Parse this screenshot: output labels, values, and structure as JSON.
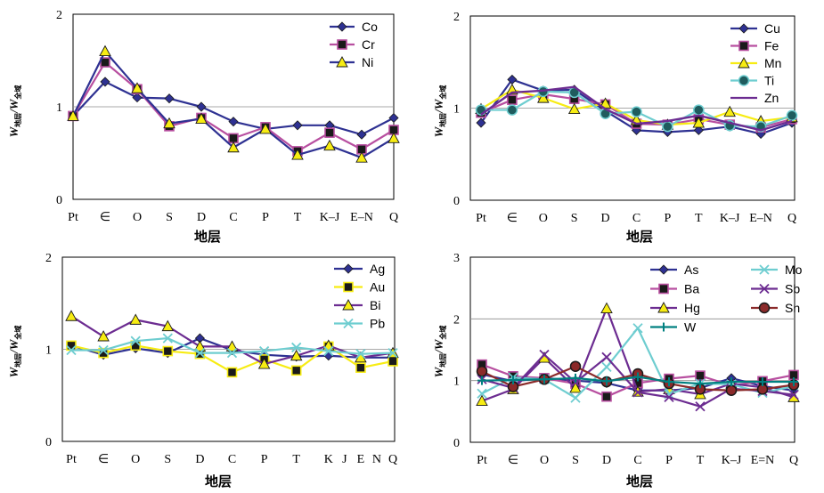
{
  "colors": {
    "navy": "#2e3192",
    "magenta": "#b84fa0",
    "yellow": "#f7ec13",
    "cyan": "#6ecdd0",
    "purple": "#6c2c91",
    "darkred": "#8b2a2a",
    "teal": "#008080",
    "markerDark": "#1a1a1a"
  },
  "chart_data": [
    {
      "type": "line",
      "ylabel": "W地层/W全域",
      "xlabel": "地层",
      "categories": [
        "Pt",
        "∈",
        "O",
        "S",
        "D",
        "C",
        "P",
        "T",
        "K–J",
        "E–N",
        "Q"
      ],
      "ylim": [
        0,
        2
      ],
      "yticks": [
        "0",
        "1",
        "2"
      ],
      "grid_y": [
        1
      ],
      "series": [
        {
          "name": "Co",
          "color": "navy",
          "marker": "diamond",
          "values": [
            0.9,
            1.27,
            1.1,
            1.09,
            1.0,
            0.84,
            0.76,
            0.8,
            0.8,
            0.7,
            0.88
          ]
        },
        {
          "name": "Cr",
          "color": "magenta",
          "marker": "square",
          "values": [
            0.9,
            1.48,
            1.19,
            0.79,
            0.88,
            0.66,
            0.78,
            0.52,
            0.72,
            0.54,
            0.75
          ]
        },
        {
          "name": "Ni",
          "color": "navy",
          "marker": "triangle",
          "values": [
            0.9,
            1.6,
            1.2,
            0.82,
            0.87,
            0.56,
            0.76,
            0.48,
            0.58,
            0.45,
            0.66
          ]
        }
      ]
    },
    {
      "type": "line",
      "ylabel": "W地层/W全域",
      "xlabel": "地层",
      "categories": [
        "Pt",
        "∈",
        "O",
        "S",
        "D",
        "C",
        "P",
        "T",
        "K–J",
        "E–N",
        "Q"
      ],
      "ylim": [
        0,
        2
      ],
      "yticks": [
        "0",
        "1",
        "2"
      ],
      "grid_y": [
        1
      ],
      "series": [
        {
          "name": "Cu",
          "color": "navy",
          "marker": "diamond",
          "values": [
            0.84,
            1.31,
            1.19,
            1.2,
            0.97,
            0.76,
            0.74,
            0.76,
            0.8,
            0.72,
            0.84
          ]
        },
        {
          "name": "Fe",
          "color": "magenta",
          "marker": "square",
          "values": [
            0.95,
            1.09,
            1.15,
            1.1,
            1.04,
            0.83,
            0.82,
            0.88,
            0.82,
            0.79,
            0.88
          ]
        },
        {
          "name": "Mn",
          "color": "yellow",
          "marker": "triangle",
          "values": [
            0.99,
            1.2,
            1.11,
            0.99,
            1.05,
            0.87,
            0.82,
            0.84,
            0.96,
            0.86,
            0.9
          ]
        },
        {
          "name": "Ti",
          "color": "cyan",
          "marker": "circle",
          "values": [
            0.98,
            0.98,
            1.18,
            1.17,
            0.94,
            0.96,
            0.8,
            0.98,
            0.81,
            0.8,
            0.92
          ]
        },
        {
          "name": "Zn",
          "color": "purple",
          "marker": "none",
          "values": [
            0.93,
            1.17,
            1.19,
            1.23,
            0.99,
            0.83,
            0.86,
            0.92,
            0.84,
            0.76,
            0.86
          ]
        }
      ]
    },
    {
      "type": "line",
      "ylabel": "W地层/W全域",
      "xlabel": "地层",
      "categories": [
        "Pt",
        "∈",
        "O",
        "S",
        "D",
        "C",
        "P",
        "T",
        "K",
        "J",
        "E",
        "N",
        "Q"
      ],
      "category_positions": [
        0,
        1,
        2,
        3,
        4,
        5,
        6,
        7,
        8,
        8.5,
        9,
        9.5,
        10
      ],
      "x": [
        0,
        1,
        2,
        3,
        4,
        5,
        6,
        7,
        8,
        9,
        10
      ],
      "ylim": [
        0,
        2
      ],
      "yticks": [
        "0",
        "1",
        "2"
      ],
      "grid_y": [
        1
      ],
      "series": [
        {
          "name": "Ag",
          "color": "navy",
          "marker": "diamond",
          "values": [
            1.04,
            0.94,
            1.01,
            0.96,
            1.12,
            0.99,
            0.94,
            0.92,
            0.93,
            0.91,
            0.91
          ]
        },
        {
          "name": "Au",
          "color": "yellow",
          "marker": "square",
          "values": [
            1.04,
            0.96,
            1.04,
            0.98,
            0.95,
            0.75,
            0.89,
            0.77,
            1.03,
            0.8,
            0.87
          ]
        },
        {
          "name": "Bi",
          "color": "purple",
          "marker": "triangle",
          "values": [
            1.36,
            1.14,
            1.32,
            1.25,
            1.03,
            1.03,
            0.84,
            0.93,
            1.04,
            0.91,
            0.96
          ]
        },
        {
          "name": "Pb",
          "color": "cyan",
          "marker": "x",
          "values": [
            0.99,
            0.99,
            1.09,
            1.12,
            0.96,
            0.96,
            0.98,
            1.02,
            0.98,
            0.95,
            0.96
          ]
        }
      ]
    },
    {
      "type": "line",
      "ylabel": "W地层/W全域",
      "xlabel": "地层",
      "categories": [
        "Pt",
        "∈",
        "O",
        "S",
        "D",
        "C",
        "P",
        "T",
        "K–J",
        "E=N",
        "Q"
      ],
      "ylim": [
        0,
        3
      ],
      "yticks": [
        "0",
        "1",
        "2",
        "3"
      ],
      "grid_y": [
        1,
        2
      ],
      "series": [
        {
          "name": "As",
          "color": "navy",
          "marker": "diamond",
          "values": [
            1.1,
            0.99,
            1.04,
            1.0,
            0.96,
            0.84,
            0.84,
            0.88,
            1.04,
            0.91,
            0.84
          ]
        },
        {
          "name": "Ba",
          "color": "magenta",
          "marker": "square",
          "values": [
            1.26,
            1.07,
            1.04,
            0.95,
            0.74,
            0.96,
            1.03,
            1.08,
            0.92,
            0.99,
            1.09
          ]
        },
        {
          "name": "Hg",
          "color": "purple",
          "marker": "triangle",
          "values": [
            0.67,
            0.86,
            1.37,
            0.88,
            2.17,
            0.82,
            0.86,
            0.78,
            0.95,
            0.89,
            0.73
          ]
        },
        {
          "name": "Mo",
          "color": "cyan",
          "marker": "x",
          "values": [
            0.79,
            1.05,
            1.02,
            0.72,
            1.22,
            1.85,
            0.78,
            0.95,
            0.94,
            0.8,
            0.91
          ]
        },
        {
          "name": "Sb",
          "color": "purple",
          "marker": "x",
          "values": [
            1.02,
            0.88,
            1.42,
            0.97,
            1.38,
            0.81,
            0.73,
            0.58,
            0.87,
            0.83,
            0.77
          ]
        },
        {
          "name": "Sn",
          "color": "darkred",
          "marker": "circle",
          "values": [
            1.15,
            0.9,
            1.02,
            1.23,
            0.98,
            1.11,
            0.95,
            0.86,
            0.84,
            0.86,
            0.93
          ]
        },
        {
          "name": "W",
          "color": "teal",
          "marker": "plus",
          "values": [
            1.0,
            1.01,
            1.02,
            1.04,
            0.99,
            1.06,
            0.98,
            0.95,
            0.98,
            0.98,
            0.98
          ]
        }
      ]
    }
  ]
}
